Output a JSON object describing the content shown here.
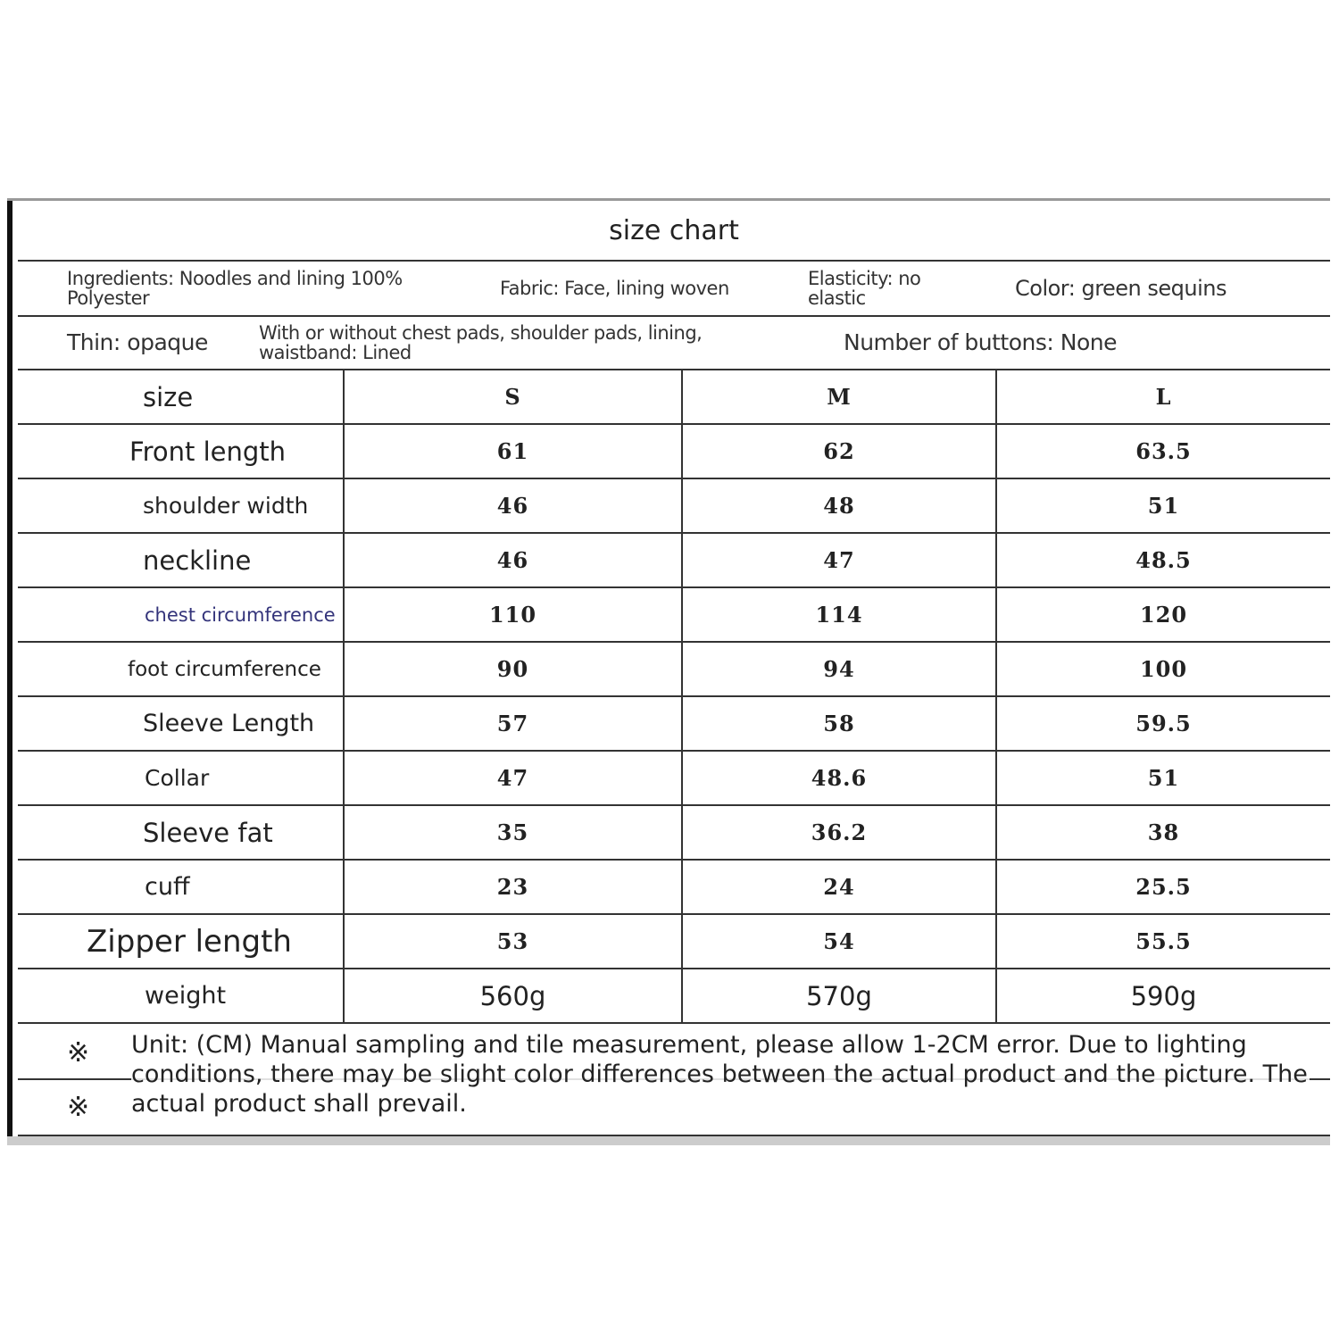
{
  "title": "size chart",
  "info": {
    "ingredients": "Ingredients: Noodles and lining 100% Polyester",
    "fabric": "Fabric: Face, lining woven",
    "elasticity": "Elasticity: no elastic",
    "color": "Color: green sequins",
    "thin": "Thin: opaque",
    "pads": "With or without chest pads, shoulder pads, lining, waistband: Lined",
    "buttons": "Number of buttons: None"
  },
  "table": {
    "headers": [
      "size",
      "S",
      "M",
      "L"
    ],
    "rows": [
      {
        "label": "Front length",
        "values": [
          "61",
          "62",
          "63.5"
        ]
      },
      {
        "label": "shoulder width",
        "values": [
          "46",
          "48",
          "51"
        ]
      },
      {
        "label": "neckline",
        "values": [
          "46",
          "47",
          "48.5"
        ]
      },
      {
        "label": "chest circumference",
        "values": [
          "110",
          "114",
          "120"
        ]
      },
      {
        "label": "foot circumference",
        "values": [
          "90",
          "94",
          "100"
        ]
      },
      {
        "label": "Sleeve Length",
        "values": [
          "57",
          "58",
          "59.5"
        ]
      },
      {
        "label": "Collar",
        "values": [
          "47",
          "48.6",
          "51"
        ]
      },
      {
        "label": "Sleeve fat",
        "values": [
          "35",
          "36.2",
          "38"
        ]
      },
      {
        "label": "cuff",
        "values": [
          "23",
          "24",
          "25.5"
        ]
      },
      {
        "label": "Zipper length",
        "values": [
          "53",
          "54",
          "55.5"
        ]
      },
      {
        "label": "weight",
        "values": [
          "560g",
          "570g",
          "590g"
        ]
      }
    ]
  },
  "notes": {
    "mark": "※",
    "unit": "Unit: (CM)",
    "text": "Manual sampling and tile measurement, please allow 1-2CM error. Due to lighting conditions, there may be slight color differences between the actual product and the picture. The actual product shall prevail."
  }
}
